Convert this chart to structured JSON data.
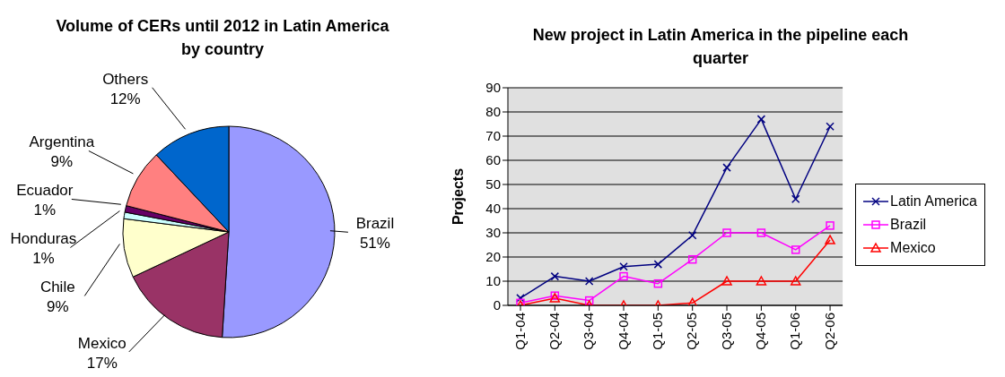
{
  "chart_data": [
    {
      "type": "pie",
      "title": "Volume of CERs until 2012 in Latin America by country",
      "categories": [
        "Brazil",
        "Mexico",
        "Chile",
        "Honduras",
        "Ecuador",
        "Argentina",
        "Others"
      ],
      "values": [
        51,
        17,
        9,
        1,
        1,
        9,
        12
      ],
      "value_labels": [
        "51%",
        "17%",
        "9%",
        "1%",
        "1%",
        "9%",
        "12%"
      ],
      "colors": [
        "#9999ff",
        "#993366",
        "#ffffcc",
        "#ccffff",
        "#660066",
        "#ff8080",
        "#0066cc"
      ],
      "legend": false
    },
    {
      "type": "line",
      "title": "New project in Latin America in the pipeline each quarter",
      "ylabel": "Projects",
      "categories": [
        "Q1-04",
        "Q2-04",
        "Q3-04",
        "Q4-04",
        "Q1-05",
        "Q2-05",
        "Q3-05",
        "Q4-05",
        "Q1-06",
        "Q2-06"
      ],
      "ylim": [
        0,
        90
      ],
      "yticks": [
        0,
        10,
        20,
        30,
        40,
        50,
        60,
        70,
        80,
        90
      ],
      "grid": "y",
      "legend": "right",
      "series": [
        {
          "name": "Latin America",
          "color": "#000080",
          "marker": "cross",
          "values": [
            3,
            12,
            10,
            16,
            17,
            29,
            57,
            77,
            44,
            74
          ]
        },
        {
          "name": "Brazil",
          "color": "#ff00ff",
          "marker": "square",
          "values": [
            1,
            4,
            2,
            12,
            9,
            19,
            30,
            30,
            23,
            33
          ]
        },
        {
          "name": "Mexico",
          "color": "#ff0000",
          "marker": "triangle",
          "values": [
            0,
            3,
            0,
            0,
            0,
            1,
            10,
            10,
            10,
            27
          ]
        }
      ]
    }
  ]
}
